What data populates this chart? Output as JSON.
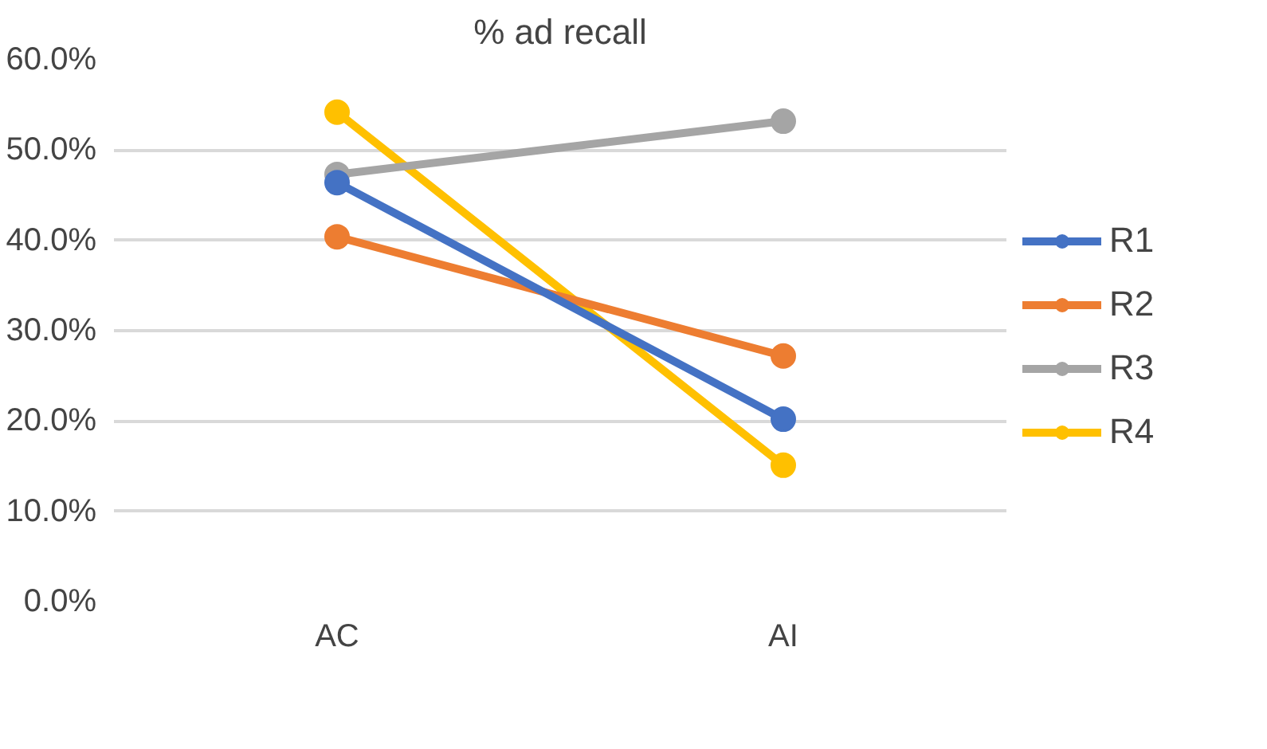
{
  "chart_data": {
    "type": "line",
    "title": "% ad recall",
    "categories": [
      "AC",
      "AI"
    ],
    "series": [
      {
        "name": "R1",
        "color": "#4472c4",
        "values": [
          46.4,
          20.2
        ]
      },
      {
        "name": "R2",
        "color": "#ed7d31",
        "values": [
          40.4,
          27.2
        ]
      },
      {
        "name": "R3",
        "color": "#a5a5a5",
        "values": [
          47.3,
          53.2
        ]
      },
      {
        "name": "R4",
        "color": "#ffc000",
        "values": [
          54.2,
          15.1
        ]
      }
    ],
    "ylim": [
      0,
      60
    ],
    "yticks": [
      {
        "value": 0,
        "label": "0.0%"
      },
      {
        "value": 10,
        "label": "10.0%"
      },
      {
        "value": 20,
        "label": "20.0%"
      },
      {
        "value": 30,
        "label": "30.0%"
      },
      {
        "value": 40,
        "label": "40.0%"
      },
      {
        "value": 50,
        "label": "50.0%"
      },
      {
        "value": 60,
        "label": "60.0%"
      }
    ],
    "grid": "y",
    "legend": "right",
    "marker": "circle",
    "line_style": "solid"
  }
}
